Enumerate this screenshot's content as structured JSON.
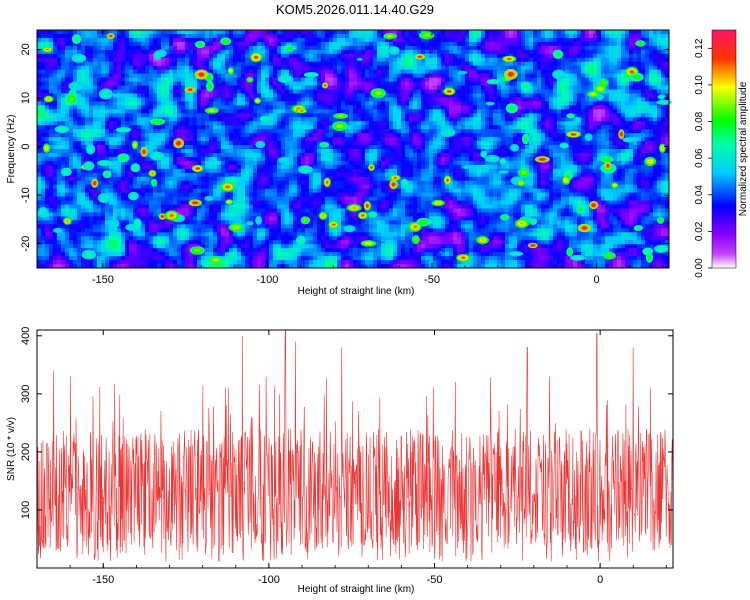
{
  "title": "KOM5.2026.011.14.40.G29",
  "chart_data": [
    {
      "type": "heatmap",
      "xlabel": "Height of straight line (km)",
      "ylabel": "Frequency (Hz)",
      "xlim": [
        -170,
        22
      ],
      "ylim": [
        -25,
        24
      ],
      "xticks": [
        -150,
        -100,
        -50,
        0
      ],
      "yticks": [
        -20,
        -10,
        0,
        10,
        20
      ],
      "colorbar": {
        "label": "Normalized spectral amplitude",
        "range": [
          0,
          0.13
        ],
        "ticks": [
          "0.00",
          "0.02",
          "0.04",
          "0.06",
          "0.08",
          "0.10",
          "0.12"
        ],
        "colormap": [
          "#ffffff",
          "#8b00ff",
          "#0000ff",
          "#00ffff",
          "#00ff00",
          "#ffff00",
          "#ff0000",
          "#ff1493"
        ]
      },
      "grid": false,
      "description_values": "dense noisy field, mostly 0.01-0.05 with scattered peaks up to ~0.12"
    },
    {
      "type": "line",
      "xlabel": "Height of straight line (km)",
      "ylabel": "SNR (10 * v/v)",
      "xlim": [
        -170,
        22
      ],
      "ylim": [
        0,
        410
      ],
      "xticks": [
        -150,
        -100,
        -50,
        0
      ],
      "yticks": [
        100,
        200,
        300,
        400
      ],
      "series_color": "#ee3333",
      "typical_range": [
        30,
        240
      ],
      "peaks": [
        {
          "x": -165,
          "y": 340
        },
        {
          "x": -108,
          "y": 400
        },
        {
          "x": -95,
          "y": 410
        },
        {
          "x": -92,
          "y": 390
        },
        {
          "x": -78,
          "y": 380
        },
        {
          "x": -22,
          "y": 380
        },
        {
          "x": -1,
          "y": 405
        },
        {
          "x": 10,
          "y": 380
        }
      ],
      "grid": false
    }
  ]
}
